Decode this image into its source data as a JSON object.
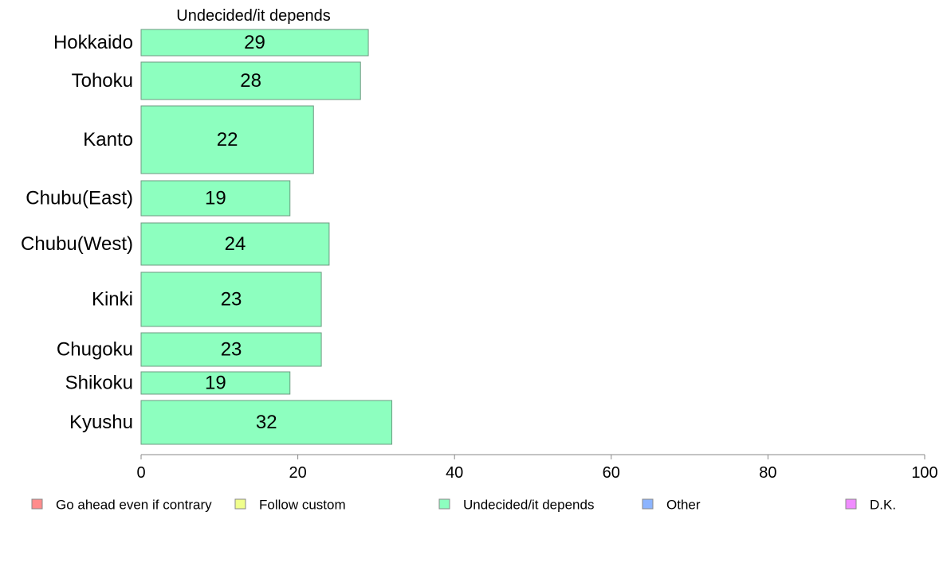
{
  "chart_data": {
    "type": "bar",
    "orientation": "horizontal",
    "title": "Undecided/it depends",
    "categories": [
      "Hokkaido",
      "Tohoku",
      "Kanto",
      "Chubu(East)",
      "Chubu(West)",
      "Kinki",
      "Chugoku",
      "Shikoku",
      "Kyushu"
    ],
    "series": [
      {
        "name": "Undecided/it depends",
        "values": [
          29,
          28,
          22,
          19,
          24,
          23,
          23,
          19,
          32
        ],
        "color": "#8dffbf"
      }
    ],
    "value_labels": [
      "29",
      "28",
      "22",
      "19",
      "24",
      "23",
      "23",
      "19",
      "32"
    ],
    "xlim": [
      0,
      100
    ],
    "x_ticks": [
      "0",
      "20",
      "40",
      "60",
      "80",
      "100"
    ],
    "grid": false,
    "legend_position": "bottom",
    "legend": [
      {
        "label": "Go ahead even if contrary",
        "color": "#ff8c8c"
      },
      {
        "label": "Follow custom",
        "color": "#f0ff8c"
      },
      {
        "label": "Undecided/it depends",
        "color": "#8dffbf"
      },
      {
        "label": "Other",
        "color": "#8cb4ff"
      },
      {
        "label": "D.K.",
        "color": "#f08cff"
      }
    ]
  }
}
